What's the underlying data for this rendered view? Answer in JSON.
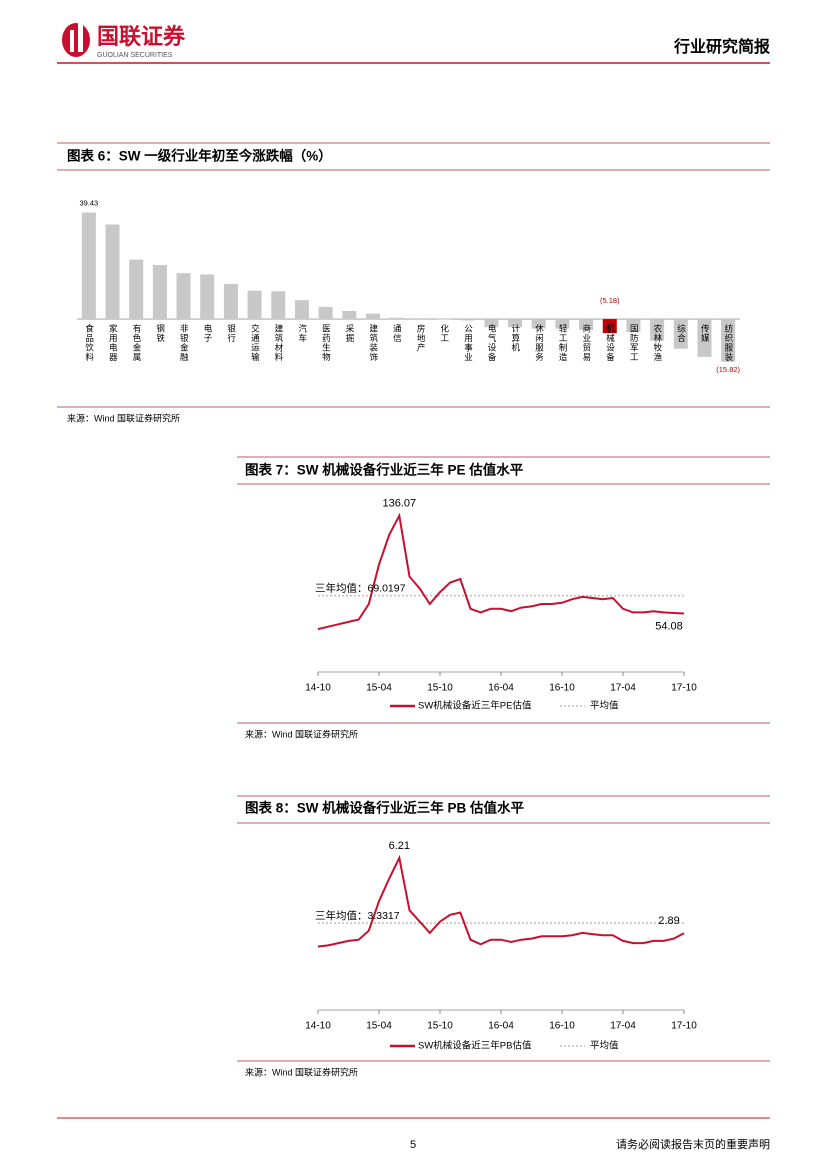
{
  "header": {
    "logo_cn": "国联证券",
    "logo_en": "GUOLIAN SECURITIES",
    "report_type": "行业研究简报"
  },
  "footer": {
    "page": "5",
    "disclaimer": "请务必阅读报告末页的重要声明"
  },
  "chart_data": [
    {
      "type": "bar",
      "title": "图表 6：SW 一级行业年初至今涨跌幅（%）",
      "source": "来源：Wind   国联证券研究所",
      "categories": [
        "食品饮料",
        "家用电器",
        "有色金属",
        "钢铁",
        "非银金融",
        "电子",
        "银行",
        "交通运输",
        "建筑材料",
        "汽车",
        "医药生物",
        "采掘",
        "建筑装饰",
        "通信",
        "房地产",
        "化工",
        "公用事业",
        "电气设备",
        "计算机",
        "休闲服务",
        "轻工制造",
        "商业贸易",
        "机械设备",
        "国防军工",
        "农林牧渔",
        "综合",
        "传媒",
        "纺织服装"
      ],
      "values": [
        39.43,
        35,
        22,
        20,
        17,
        16.5,
        13,
        10.5,
        10.3,
        7,
        4.5,
        3,
        2,
        0.5,
        0.3,
        -0.2,
        -0.5,
        -3,
        -3,
        -3.5,
        -3.5,
        -4,
        -5.18,
        -4.8,
        -8,
        -11,
        -14,
        -15.82
      ],
      "value_labels": [
        "39.43",
        null,
        null,
        null,
        null,
        null,
        null,
        null,
        null,
        null,
        null,
        null,
        null,
        null,
        null,
        null,
        null,
        null,
        null,
        null,
        null,
        null,
        "(5.18)",
        null,
        null,
        null,
        null,
        "(15.82)"
      ],
      "colors": [
        "#c8c8c8",
        "#c8c8c8",
        "#c8c8c8",
        "#c8c8c8",
        "#c8c8c8",
        "#c8c8c8",
        "#c8c8c8",
        "#c8c8c8",
        "#c8c8c8",
        "#c8c8c8",
        "#c8c8c8",
        "#c8c8c8",
        "#c8c8c8",
        "#c8c8c8",
        "#c8c8c8",
        "#c8c8c8",
        "#c8c8c8",
        "#c8c8c8",
        "#c8c8c8",
        "#c8c8c8",
        "#c8c8c8",
        "#c8c8c8",
        "#c00000",
        "#c8c8c8",
        "#c8c8c8",
        "#c8c8c8",
        "#c8c8c8",
        "#c8c8c8"
      ],
      "ylim": [
        -17,
        40
      ]
    },
    {
      "type": "line",
      "title": "图表 7：SW 机械设备行业近三年 PE 估值水平",
      "source": "来源：Wind   国联证券研究所",
      "x": [
        "14-10",
        "14-11",
        "14-12",
        "15-01",
        "15-02",
        "15-03",
        "15-04",
        "15-05",
        "15-06",
        "15-07",
        "15-08",
        "15-09",
        "15-10",
        "15-11",
        "15-12",
        "16-01",
        "16-02",
        "16-03",
        "16-04",
        "16-05",
        "16-06",
        "16-07",
        "16-08",
        "16-09",
        "16-10",
        "16-11",
        "16-12",
        "17-01",
        "17-02",
        "17-03",
        "17-04",
        "17-05",
        "17-06",
        "17-07",
        "17-08",
        "17-09",
        "17-10"
      ],
      "xticks": [
        "14-10",
        "15-04",
        "15-10",
        "16-04",
        "16-10",
        "17-04",
        "17-10"
      ],
      "series": [
        {
          "name": "SW机械设备近三年PE估值",
          "color": "#c8102e",
          "values": [
            41,
            43,
            45,
            47,
            49,
            62,
            95,
            120,
            136.07,
            85,
            75,
            62,
            72,
            80,
            83,
            58,
            55,
            58,
            58,
            56,
            59,
            60,
            62,
            62,
            63,
            66,
            68,
            67,
            66,
            67,
            58,
            55,
            55,
            56,
            55,
            54.5,
            54.08
          ],
          "value_labels": [
            null,
            null,
            null,
            null,
            null,
            null,
            null,
            null,
            "136.07",
            null,
            null,
            null,
            null,
            null,
            null,
            null,
            null,
            null,
            null,
            null,
            null,
            null,
            null,
            null,
            null,
            null,
            null,
            null,
            null,
            null,
            null,
            null,
            null,
            null,
            null,
            null,
            "54.08"
          ]
        },
        {
          "name": "平均值",
          "color": "#bfbfbf",
          "style": "dotted",
          "value": 69.0197,
          "label": "三年均值：69.0197"
        }
      ],
      "ylim": [
        5,
        145
      ]
    },
    {
      "type": "line",
      "title": "图表 8：SW 机械设备行业近三年 PB 估值水平",
      "source": "来源：Wind   国联证券研究所",
      "x": [
        "14-10",
        "14-11",
        "14-12",
        "15-01",
        "15-02",
        "15-03",
        "15-04",
        "15-05",
        "15-06",
        "15-07",
        "15-08",
        "15-09",
        "15-10",
        "15-11",
        "15-12",
        "16-01",
        "16-02",
        "16-03",
        "16-04",
        "16-05",
        "16-06",
        "16-07",
        "16-08",
        "16-09",
        "16-10",
        "16-11",
        "16-12",
        "17-01",
        "17-02",
        "17-03",
        "17-04",
        "17-05",
        "17-06",
        "17-07",
        "17-08",
        "17-09",
        "17-10"
      ],
      "xticks": [
        "14-10",
        "15-04",
        "15-10",
        "16-04",
        "16-10",
        "17-04",
        "17-10"
      ],
      "series": [
        {
          "name": "SW机械设备近三年PB估值",
          "color": "#c8102e",
          "values": [
            2.3,
            2.35,
            2.45,
            2.55,
            2.6,
            3.0,
            4.3,
            5.3,
            6.21,
            3.9,
            3.4,
            2.9,
            3.4,
            3.7,
            3.8,
            2.6,
            2.4,
            2.6,
            2.6,
            2.5,
            2.6,
            2.65,
            2.75,
            2.75,
            2.75,
            2.8,
            2.9,
            2.85,
            2.8,
            2.8,
            2.55,
            2.45,
            2.45,
            2.55,
            2.55,
            2.65,
            2.89
          ],
          "value_labels": [
            null,
            null,
            null,
            null,
            null,
            null,
            null,
            null,
            "6.21",
            null,
            null,
            null,
            null,
            null,
            null,
            null,
            null,
            null,
            null,
            null,
            null,
            null,
            null,
            null,
            null,
            null,
            null,
            null,
            null,
            null,
            null,
            null,
            null,
            null,
            null,
            null,
            "2.89"
          ]
        },
        {
          "name": "平均值",
          "color": "#bfbfbf",
          "style": "dotted",
          "value": 3.3317,
          "label": "三年均值：3.3317"
        }
      ],
      "ylim": [
        -0.5,
        7
      ]
    }
  ]
}
